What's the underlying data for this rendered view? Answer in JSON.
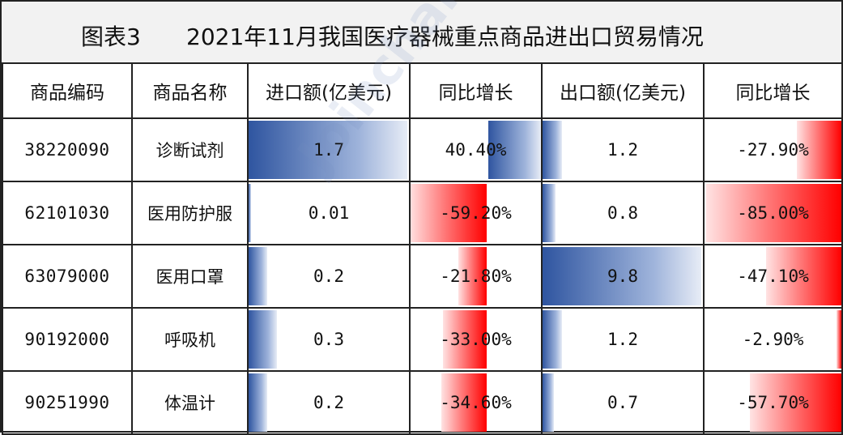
{
  "title": {
    "figure_no": "图表3",
    "text": "2021年11月我国医疗器械重点商品进出口贸易情况"
  },
  "headers": [
    "商品编码",
    "商品名称",
    "进口额(亿美元)",
    "同比增长",
    "出口额(亿美元)",
    "同比增长"
  ],
  "rows": [
    {
      "code": "38220090",
      "name": "诊断试剂",
      "import": "1.7",
      "import_yoy": "40.40%",
      "export": "1.2",
      "export_yoy": "-27.90%",
      "import_num": 1.7,
      "import_yoy_num": 40.4,
      "export_num": 1.2,
      "export_yoy_num": -27.9
    },
    {
      "code": "62101030",
      "name": "医用防护服",
      "import": "0.01",
      "import_yoy": "-59.20%",
      "export": "0.8",
      "export_yoy": "-85.00%",
      "import_num": 0.01,
      "import_yoy_num": -59.2,
      "export_num": 0.8,
      "export_yoy_num": -85.0
    },
    {
      "code": "63079000",
      "name": "医用口罩",
      "import": "0.2",
      "import_yoy": "-21.80%",
      "export": "9.8",
      "export_yoy": "-47.10%",
      "import_num": 0.2,
      "import_yoy_num": -21.8,
      "export_num": 9.8,
      "export_yoy_num": -47.1
    },
    {
      "code": "90192000",
      "name": "呼吸机",
      "import": "0.3",
      "import_yoy": "-33.00%",
      "export": "1.2",
      "export_yoy": "-2.90%",
      "import_num": 0.3,
      "import_yoy_num": -33.0,
      "export_num": 1.2,
      "export_yoy_num": -2.9
    },
    {
      "code": "90251990",
      "name": "体温计",
      "import": "0.2",
      "import_yoy": "-34.60%",
      "export": "0.7",
      "export_yoy": "-57.70%",
      "import_num": 0.2,
      "import_yoy_num": -34.6,
      "export_num": 0.7,
      "export_yoy_num": -57.7
    }
  ],
  "watermark": "Joinchain.众成",
  "colors": {
    "positive_bar": "#2f55a0",
    "negative_bar": "#ff0000",
    "title_bg": "#f2f2f2"
  }
}
